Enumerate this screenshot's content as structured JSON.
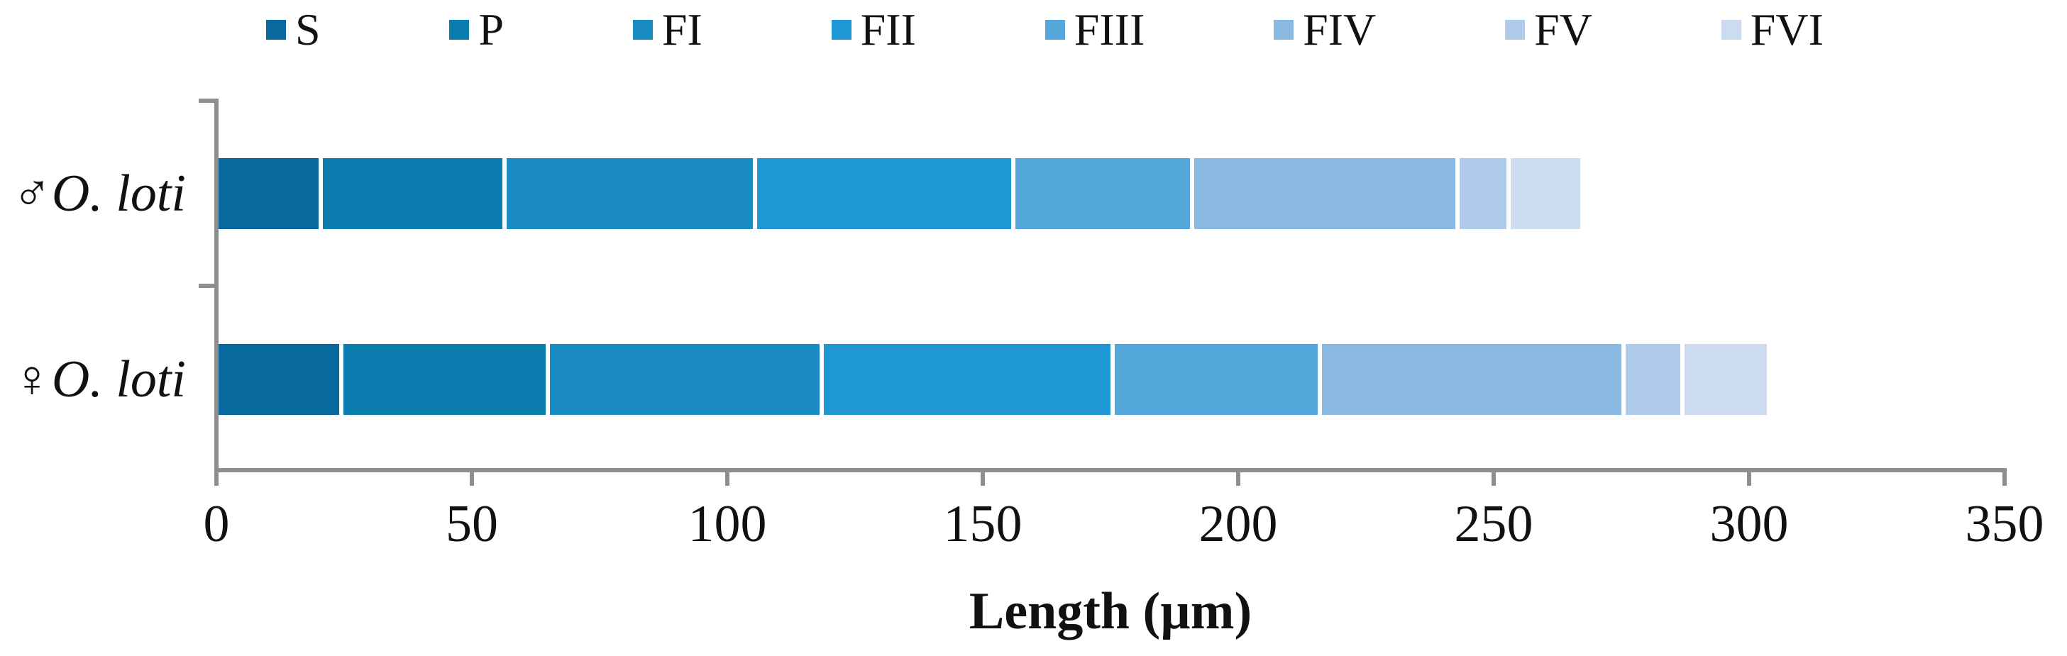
{
  "figure": {
    "background": "#ffffff",
    "axis_color": "#8E8E8E",
    "text_color": "#111111"
  },
  "chart_data": {
    "type": "bar",
    "orientation": "horizontal",
    "stacked": true,
    "title": "",
    "xlabel": "Length (µm)",
    "ylabel": "",
    "xlim": [
      0,
      350
    ],
    "x_ticks": [
      0,
      50,
      100,
      150,
      200,
      250,
      300,
      350
    ],
    "grid": false,
    "legend_position": "top",
    "categories": [
      "♂O. loti",
      "♀O. loti"
    ],
    "series": [
      {
        "name": "S",
        "color": "#086A9C",
        "values": [
          20,
          24
        ]
      },
      {
        "name": "P",
        "color": "#0A7DAE",
        "values": [
          36,
          40.5
        ]
      },
      {
        "name": "FI",
        "color": "#1A8BC1",
        "values": [
          49,
          53.5
        ]
      },
      {
        "name": "FII",
        "color": "#1E97D4",
        "values": [
          50.5,
          57
        ]
      },
      {
        "name": "FIII",
        "color": "#55A8DC",
        "values": [
          35,
          40.5
        ]
      },
      {
        "name": "FIV",
        "color": "#8ABAE1",
        "values": [
          52,
          59.5
        ]
      },
      {
        "name": "FV",
        "color": "#AECBEA",
        "values": [
          10,
          11.5
        ]
      },
      {
        "name": "FVI",
        "color": "#CBDCF0",
        "values": [
          14.5,
          17
        ]
      }
    ],
    "totals": [
      267,
      303.5
    ]
  },
  "category_labels": [
    {
      "symbol": "♂",
      "name": "O. loti"
    },
    {
      "symbol": "♀",
      "name": "O. loti"
    }
  ]
}
